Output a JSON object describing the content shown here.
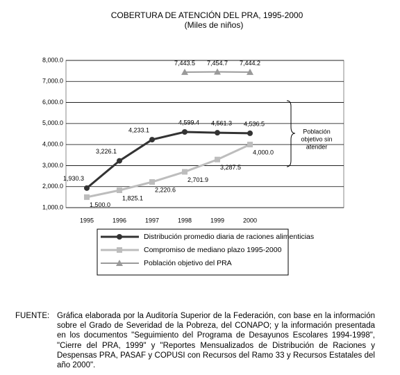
{
  "chart_data": {
    "type": "line",
    "title": "COBERTURA DE ATENCIÓN DEL PRA,  1995-2000",
    "subtitle": "(Miles de niños)",
    "categories": [
      "1995",
      "1996",
      "1997",
      "1998",
      "1999",
      "2000"
    ],
    "ylim": [
      1000,
      8000
    ],
    "yticks": [
      {
        "value": 1000,
        "label": "1,000.0"
      },
      {
        "value": 2000,
        "label": "2,000.0"
      },
      {
        "value": 3000,
        "label": "3,000.0"
      },
      {
        "value": 4000,
        "label": "4,000.0"
      },
      {
        "value": 5000,
        "label": "5,000.0"
      },
      {
        "value": 6000,
        "label": "6,000.0"
      },
      {
        "value": 7000,
        "label": "7,000.0"
      },
      {
        "value": 8000,
        "label": "8,000.0"
      }
    ],
    "grid": true,
    "series": [
      {
        "name": "Distribución promedio diaria de raciones alimenticias",
        "color": "#333333",
        "marker": "circle",
        "values": [
          1930.3,
          3226.1,
          4233.1,
          4599.4,
          4561.3,
          4536.5
        ],
        "value_labels": [
          "1,930.3",
          "3,226.1",
          "4,233.1",
          "4,599.4",
          "4,561.3",
          "4,536.5"
        ]
      },
      {
        "name": "Compromiso de mediano plazo 1995-2000",
        "color": "#bdbdbd",
        "marker": "square",
        "values": [
          1500.0,
          1825.1,
          2220.6,
          2701.9,
          3287.5,
          4000.0
        ],
        "value_labels": [
          "1,500.0",
          "1,825.1",
          "2,220.6",
          "2,701.9",
          "3,287.5",
          "4,000.0"
        ]
      },
      {
        "name": "Población objetivo del PRA",
        "color": "#9a9a9a",
        "marker": "triangle",
        "values": [
          null,
          null,
          null,
          7443.5,
          7454.7,
          7444.2
        ],
        "value_labels": [
          null,
          null,
          null,
          "7,443.5",
          "7,454.7",
          "7,444.2"
        ]
      }
    ],
    "annotation": [
      "Población",
      "objetivo sin",
      "atender"
    ]
  },
  "footer": {
    "label": "FUENTE:",
    "text": "Gráfica elaborada por la  Auditoría Superior de la Federación, con base en la información sobre el Grado de Severidad de la Pobreza, del CONAPO; y la información presentada en los documentos \"Seguimiento del Programa de Desayunos Escolares 1994-1998\", \"Cierre del PRA, 1999\" y \"Reportes Mensualizados de Distribución de Raciones y Despensas PRA, PASAF y COPUSI con Recursos del Ramo 33 y Recursos Estatales del año 2000\"."
  }
}
